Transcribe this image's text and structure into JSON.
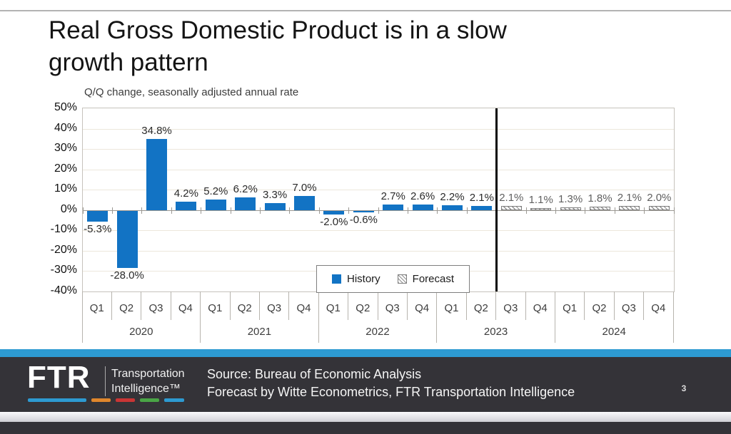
{
  "title_lines": [
    "Real Gross Domestic Product is in a slow",
    "growth pattern"
  ],
  "page_number": "3",
  "colors": {
    "history_bar": "#1273c4",
    "footer_accent_blue": "#2d9ad1",
    "logo_dash_colors": [
      "#2d9ad1",
      "#e0862c",
      "#c93535",
      "#4aa546",
      "#2d9ad1"
    ]
  },
  "footer": {
    "logo_text": "FTR",
    "logo_tagline_line1": "Transportation",
    "logo_tagline_line2": "Intelligence™",
    "source_line1": "Source: Bureau of Economic Analysis",
    "source_line2": "Forecast by Witte Econometrics, FTR Transportation Intelligence"
  },
  "chart_data": {
    "type": "bar",
    "title": "Real Gross Domestic Product is in a slow growth pattern",
    "subtitle": "Q/Q change, seasonally adjusted annual rate",
    "xlabel": "",
    "ylabel": "Q/Q % change, seasonally adjusted annual rate",
    "ylim": [
      -40,
      50
    ],
    "ytick_step": 10,
    "ytick_labels": [
      "50%",
      "40%",
      "30%",
      "20%",
      "10%",
      "0%",
      "-10%",
      "-20%",
      "-30%",
      "-40%"
    ],
    "grid": true,
    "legend_position": "inside-bottom-center",
    "categories": [
      "Q1",
      "Q2",
      "Q3",
      "Q4",
      "Q1",
      "Q2",
      "Q3",
      "Q4",
      "Q1",
      "Q2",
      "Q3",
      "Q4",
      "Q1",
      "Q2",
      "Q3",
      "Q4",
      "Q1",
      "Q2",
      "Q3",
      "Q4"
    ],
    "year_groups": [
      {
        "label": "2020",
        "span": 4
      },
      {
        "label": "2021",
        "span": 4
      },
      {
        "label": "2022",
        "span": 4
      },
      {
        "label": "2023",
        "span": 4
      },
      {
        "label": "2024",
        "span": 4
      }
    ],
    "series": [
      {
        "name": "History",
        "style": "solid",
        "values": [
          -5.3,
          -28.0,
          34.8,
          4.2,
          5.2,
          6.2,
          3.3,
          7.0,
          -2.0,
          -0.6,
          2.7,
          2.6,
          2.2,
          2.1,
          null,
          null,
          null,
          null,
          null,
          null
        ]
      },
      {
        "name": "Forecast",
        "style": "hatched",
        "values": [
          null,
          null,
          null,
          null,
          null,
          null,
          null,
          null,
          null,
          null,
          null,
          null,
          null,
          null,
          2.1,
          1.1,
          1.3,
          1.8,
          2.1,
          2.0
        ]
      }
    ],
    "divider_after_index": 14
  }
}
